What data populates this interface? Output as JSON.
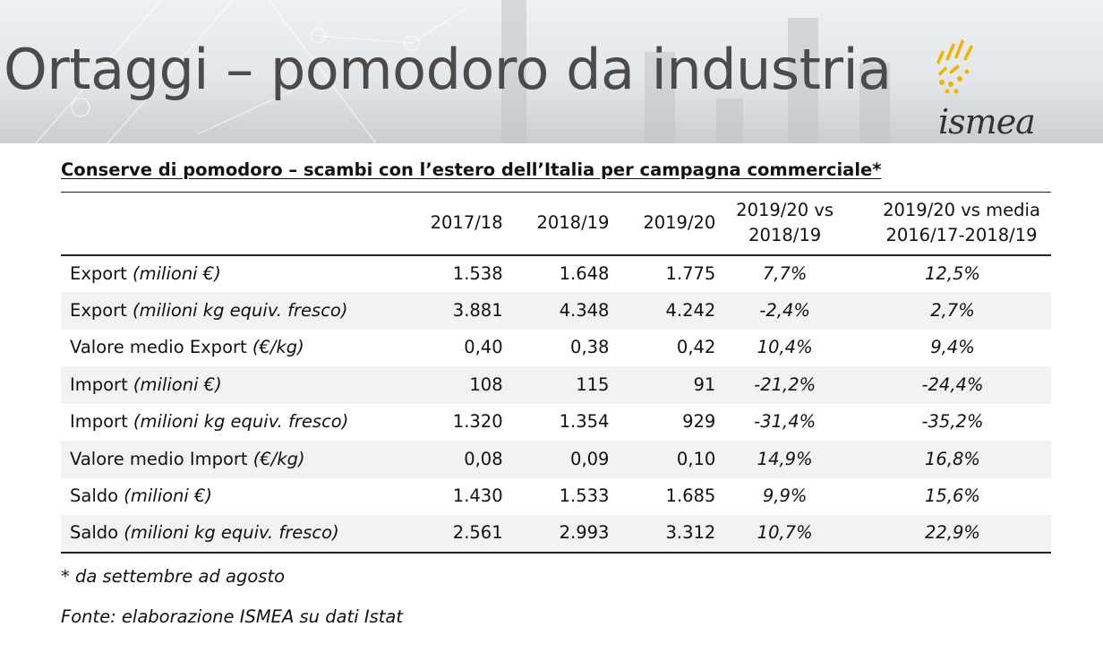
{
  "header": {
    "title": "Ortaggi – pomodoro da industria",
    "logo_text": "ismea"
  },
  "table": {
    "title": "Conserve di pomodoro – scambi con l’estero dell’Italia per campagna commerciale*",
    "columns": [
      "2017/18",
      "2018/19",
      "2019/20",
      "2019/20 vs 2018/19",
      "2019/20 vs media 2016/17-2018/19"
    ],
    "rows": [
      {
        "label": "Export ",
        "unit": "(milioni €)",
        "v2017": "1.538",
        "v2018": "1.648",
        "v2019": "1.775",
        "vs_prev": "7,7%",
        "vs_avg": "12,5%"
      },
      {
        "label": "Export ",
        "unit": "(milioni kg equiv. fresco)",
        "v2017": "3.881",
        "v2018": "4.348",
        "v2019": "4.242",
        "vs_prev": "-2,4%",
        "vs_avg": "2,7%"
      },
      {
        "label": "Valore medio Export ",
        "unit": "(€/kg)",
        "v2017": "0,40",
        "v2018": "0,38",
        "v2019": "0,42",
        "vs_prev": "10,4%",
        "vs_avg": "9,4%"
      },
      {
        "label": "Import ",
        "unit": "(milioni €)",
        "v2017": "108",
        "v2018": "115",
        "v2019": "91",
        "vs_prev": "-21,2%",
        "vs_avg": "-24,4%"
      },
      {
        "label": "Import ",
        "unit": "(milioni kg equiv. fresco)",
        "v2017": "1.320",
        "v2018": "1.354",
        "v2019": "929",
        "vs_prev": "-31,4%",
        "vs_avg": "-35,2%"
      },
      {
        "label": "Valore medio Import ",
        "unit": "(€/kg)",
        "v2017": "0,08",
        "v2018": "0,09",
        "v2019": "0,10",
        "vs_prev": "14,9%",
        "vs_avg": "16,8%"
      },
      {
        "label": "Saldo ",
        "unit": "(milioni €)",
        "v2017": "1.430",
        "v2018": "1.533",
        "v2019": "1.685",
        "vs_prev": "9,9%",
        "vs_avg": "15,6%"
      },
      {
        "label": "Saldo ",
        "unit": "(milioni kg equiv. fresco)",
        "v2017": "2.561",
        "v2018": "2.993",
        "v2019": "3.312",
        "vs_prev": "10,7%",
        "vs_avg": "22,9%"
      }
    ]
  },
  "footnotes": {
    "period": "* da settembre ad agosto",
    "source": "Fonte: elaborazione ISMEA su dati Istat"
  },
  "colors": {
    "title_gray": "#4b4b4b",
    "logo_yellow": "#f2b200",
    "row_band": "#f1f2f3"
  }
}
